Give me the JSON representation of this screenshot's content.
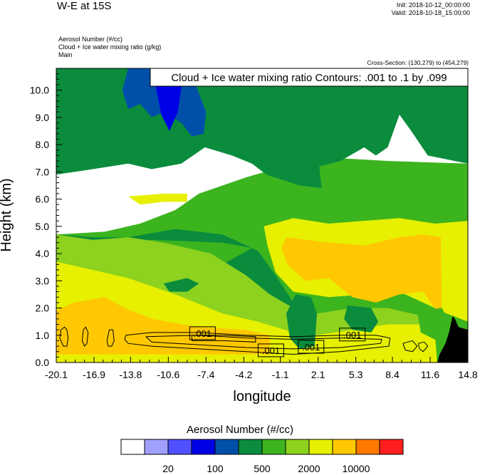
{
  "header": {
    "title": "W-E at 15S",
    "init": "Init: 2018-10-12_00:00:00",
    "valid": "Valid: 2018-10-18_15:00:00",
    "variables": [
      "Aerosol Number   (#/cc)",
      "Cloud + Ice water mixing ratio   (g/kg)",
      "Main"
    ],
    "cross_section": "Cross-Section: (130,279) to (454,279)"
  },
  "colors": {
    "levels": [
      "#ffffff",
      "#a0a0ff",
      "#5050ff",
      "#0000e6",
      "#0050aa",
      "#0a8c3c",
      "#3cb41e",
      "#8cd21e",
      "#e6f000",
      "#ffc800",
      "#ff7800",
      "#ff1e1e"
    ],
    "terrain": "#000000"
  },
  "chart_data": {
    "type": "contour",
    "title": "Cloud + Ice water mixing ratio Contours: .001 to .1 by .099",
    "xlabel": "longitude",
    "ylabel": "Height (km)",
    "x_ticks": [
      "-20.1",
      "-16.9",
      "-13.8",
      "-10.6",
      "-7.4",
      "-4.2",
      "-1.1",
      "2.1",
      "5.3",
      "8.4",
      "11.6",
      "14.8"
    ],
    "y_ticks": [
      "0.0",
      "1.0",
      "2.0",
      "3.0",
      "4.0",
      "5.0",
      "6.0",
      "7.0",
      "8.0",
      "9.0",
      "10.0"
    ],
    "xlim": [
      -20.1,
      14.8
    ],
    "ylim": [
      0,
      10.8
    ],
    "contour_labels": [
      ".001",
      ".001",
      ".001",
      ".001"
    ],
    "colorbar": {
      "title": "Aerosol Number  (#/cc)",
      "tick_labels": [
        "20",
        "100",
        "500",
        "2000",
        "10000"
      ]
    },
    "regions": [
      {
        "level": 6,
        "outline": [
          [
            -20.1,
            0
          ],
          [
            14.8,
            0
          ],
          [
            14.8,
            7.3
          ],
          [
            8,
            7.4
          ],
          [
            4,
            7.5
          ],
          [
            0,
            7.3
          ],
          [
            -4,
            6.8
          ],
          [
            -8,
            6.2
          ],
          [
            -10,
            5.6
          ],
          [
            -13,
            5.1
          ],
          [
            -16,
            4.8
          ],
          [
            -20.1,
            4.7
          ]
        ]
      },
      {
        "level": 5,
        "outline": [
          [
            -20.1,
            10.8
          ],
          [
            14.8,
            10.8
          ],
          [
            14.8,
            7.3
          ],
          [
            11.4,
            7.6
          ],
          [
            10,
            8.5
          ],
          [
            9,
            9.1
          ],
          [
            8,
            7.9
          ],
          [
            7,
            7.6
          ],
          [
            6,
            7.9
          ],
          [
            4,
            7.4
          ],
          [
            2.2,
            7.2
          ],
          [
            2.4,
            6.4
          ],
          [
            0.5,
            6.5
          ],
          [
            -2.3,
            6.9
          ],
          [
            -3.5,
            7.3
          ],
          [
            -5.2,
            7.6
          ],
          [
            -7.5,
            7.9
          ],
          [
            -9.5,
            7.3
          ],
          [
            -12,
            7.1
          ],
          [
            -14,
            7.3
          ],
          [
            -17,
            7.1
          ],
          [
            -20.1,
            6.9
          ]
        ]
      },
      {
        "level": 5,
        "outline": [
          [
            -20.1,
            4.7
          ],
          [
            -17,
            4.6
          ],
          [
            -14,
            4.6
          ],
          [
            -10,
            4.9
          ],
          [
            -6,
            4.7
          ],
          [
            -3,
            4.1
          ],
          [
            -1.5,
            3.2
          ],
          [
            0,
            2.2
          ],
          [
            2,
            1.7
          ],
          [
            5,
            1.6
          ],
          [
            8,
            1.8
          ],
          [
            11,
            1.5
          ],
          [
            12,
            1.2
          ],
          [
            12,
            0.4
          ],
          [
            3,
            0.4
          ],
          [
            -4,
            0.4
          ],
          [
            -8,
            0.5
          ],
          [
            -20.1,
            0.5
          ],
          [
            -20.1,
            0.9
          ],
          [
            -17,
            1.1
          ],
          [
            -14,
            1.4
          ],
          [
            -10,
            2.4
          ],
          [
            -6,
            3.6
          ],
          [
            -3.5,
            4.2
          ],
          [
            -6,
            4.4
          ],
          [
            -12,
            4.5
          ],
          [
            -20.1,
            4.2
          ]
        ]
      },
      {
        "level": 4,
        "outline": [
          [
            -14,
            10.8
          ],
          [
            -9,
            10.8
          ],
          [
            -8.2,
            10.1
          ],
          [
            -7.4,
            9.2
          ],
          [
            -7.6,
            8.4
          ],
          [
            -8.6,
            8.3
          ],
          [
            -9.5,
            8.8
          ],
          [
            -11,
            9.2
          ],
          [
            -12,
            9.0
          ],
          [
            -13,
            9.5
          ],
          [
            -14,
            9.3
          ],
          [
            -14.5,
            10.0
          ]
        ]
      },
      {
        "level": 3,
        "outline": [
          [
            -12,
            10.8
          ],
          [
            -9.3,
            10.8
          ],
          [
            -9.5,
            10.1
          ],
          [
            -9.8,
            9.2
          ],
          [
            -10.5,
            8.5
          ],
          [
            -11.2,
            9.1
          ],
          [
            -11.6,
            10.0
          ]
        ]
      },
      {
        "level": 4,
        "outline": [
          [
            -8,
            10.8
          ],
          [
            -6.5,
            10.8
          ],
          [
            -6.8,
            10.3
          ],
          [
            -7.3,
            10.2
          ],
          [
            -7.8,
            10.4
          ]
        ]
      },
      {
        "level": 7,
        "outline": [
          [
            -20.1,
            4.7
          ],
          [
            -17,
            4.5
          ],
          [
            -14,
            4.6
          ],
          [
            -11,
            4.4
          ],
          [
            -7,
            4.0
          ],
          [
            -4,
            3.2
          ],
          [
            -2,
            2.5
          ],
          [
            0,
            2.0
          ],
          [
            2,
            1.8
          ],
          [
            5,
            2.0
          ],
          [
            8,
            2.0
          ],
          [
            11,
            1.7
          ],
          [
            12,
            1.2
          ],
          [
            12,
            0.2
          ],
          [
            -20.1,
            0.2
          ]
        ]
      },
      {
        "level": 8,
        "outline": [
          [
            -20.1,
            3.7
          ],
          [
            -17,
            3.4
          ],
          [
            -14,
            3.1
          ],
          [
            -10,
            2.5
          ],
          [
            -6,
            1.8
          ],
          [
            -3,
            1.5
          ],
          [
            0,
            1.1
          ],
          [
            2,
            1.0
          ],
          [
            5,
            1.2
          ],
          [
            8,
            1.4
          ],
          [
            11,
            1.4
          ],
          [
            12,
            1.1
          ],
          [
            12.2,
            0
          ],
          [
            -20.1,
            0
          ]
        ]
      },
      {
        "level": 8,
        "outline": [
          [
            -2.5,
            5.0
          ],
          [
            0,
            5.3
          ],
          [
            3,
            5.1
          ],
          [
            6,
            5.2
          ],
          [
            9,
            5.3
          ],
          [
            12,
            5.1
          ],
          [
            14.8,
            5.2
          ],
          [
            14.8,
            1.5
          ],
          [
            13,
            1.8
          ],
          [
            11,
            2.2
          ],
          [
            9,
            2.6
          ],
          [
            6,
            2.5
          ],
          [
            3,
            2.4
          ],
          [
            0,
            2.6
          ],
          [
            -1.5,
            3.3
          ],
          [
            -2.2,
            4.3
          ]
        ]
      },
      {
        "level": 9,
        "outline": [
          [
            -18.6,
            2.2
          ],
          [
            -16,
            2.4
          ],
          [
            -14.3,
            2.0
          ],
          [
            -12,
            1.6
          ],
          [
            -8,
            1.3
          ],
          [
            -4,
            1.2
          ],
          [
            -2,
            1.0
          ],
          [
            -2,
            0.3
          ],
          [
            -20.1,
            0.3
          ],
          [
            -20.1,
            1.9
          ]
        ]
      },
      {
        "level": 9,
        "outline": [
          [
            -0.6,
            4.6
          ],
          [
            3,
            4.4
          ],
          [
            6,
            4.3
          ],
          [
            9,
            4.6
          ],
          [
            11,
            4.7
          ],
          [
            12.5,
            4.6
          ],
          [
            12.6,
            1.6
          ],
          [
            11,
            2.6
          ],
          [
            9,
            2.5
          ],
          [
            7,
            2.2
          ],
          [
            5,
            2.4
          ],
          [
            3,
            3.1
          ],
          [
            1,
            3.0
          ],
          [
            -0.5,
            3.6
          ],
          [
            -1,
            4.2
          ]
        ]
      },
      {
        "level": 8,
        "outline": [
          [
            -14,
            6.1
          ],
          [
            -11,
            6.2
          ],
          [
            -9,
            6.2
          ],
          [
            -9,
            5.9
          ],
          [
            -11,
            5.9
          ],
          [
            -13,
            5.8
          ]
        ]
      },
      {
        "level": 5,
        "outline": [
          [
            -11,
            2.9
          ],
          [
            -9,
            3.1
          ],
          [
            -8,
            2.9
          ],
          [
            -9,
            2.6
          ],
          [
            -10.5,
            2.6
          ]
        ]
      },
      {
        "level": 5,
        "outline": [
          [
            0.2,
            2.5
          ],
          [
            1.5,
            2.4
          ],
          [
            2,
            1.8
          ],
          [
            1.8,
            0.6
          ],
          [
            0.5,
            0.5
          ],
          [
            -0.3,
            0.9
          ],
          [
            -0.6,
            1.8
          ]
        ]
      },
      {
        "level": 5,
        "outline": [
          [
            4.6,
            2.1
          ],
          [
            6.6,
            2.0
          ],
          [
            7.2,
            1.5
          ],
          [
            6.6,
            1.1
          ],
          [
            5,
            1.2
          ],
          [
            4.3,
            1.6
          ]
        ]
      },
      {
        "level": 6,
        "outline": [
          [
            10.5,
            1.9
          ],
          [
            12.6,
            2.0
          ],
          [
            13.3,
            1.4
          ],
          [
            12.2,
            0.8
          ],
          [
            10.8,
            1.1
          ]
        ]
      }
    ],
    "terrain": {
      "outline": [
        [
          12.2,
          0
        ],
        [
          12.4,
          0.3
        ],
        [
          12.9,
          0.7
        ],
        [
          13.2,
          1.1
        ],
        [
          13.5,
          1.7
        ],
        [
          13.7,
          1.6
        ],
        [
          14,
          1.3
        ],
        [
          14.8,
          1.2
        ],
        [
          14.8,
          0
        ]
      ]
    },
    "contours": [
      [
        [
          -19.8,
          0.9
        ],
        [
          -19.7,
          1.2
        ],
        [
          -19.4,
          1.3
        ],
        [
          -19.2,
          1.2
        ],
        [
          -19.1,
          0.9
        ],
        [
          -19.2,
          0.6
        ],
        [
          -19.5,
          0.6
        ],
        [
          -19.8,
          0.9
        ]
      ],
      [
        [
          -17.9,
          0.8
        ],
        [
          -17.8,
          1.2
        ],
        [
          -17.6,
          1.3
        ],
        [
          -17.4,
          1.1
        ],
        [
          -17.5,
          0.7
        ],
        [
          -17.7,
          0.6
        ],
        [
          -17.9,
          0.8
        ]
      ],
      [
        [
          -15.8,
          0.8
        ],
        [
          -15.6,
          1.2
        ],
        [
          -15.3,
          1.2
        ],
        [
          -15.2,
          0.8
        ],
        [
          -15.4,
          0.6
        ],
        [
          -15.7,
          0.6
        ],
        [
          -15.8,
          0.8
        ]
      ],
      [
        [
          -14.2,
          1.0
        ],
        [
          -12,
          1.1
        ],
        [
          -8,
          1.1
        ],
        [
          -4,
          1.0
        ],
        [
          0,
          0.95
        ],
        [
          4,
          1.0
        ],
        [
          7,
          1.0
        ],
        [
          8.2,
          0.9
        ],
        [
          8.1,
          0.6
        ],
        [
          4,
          0.4
        ],
        [
          0,
          0.3
        ],
        [
          -4,
          0.4
        ],
        [
          -8,
          0.5
        ],
        [
          -12,
          0.6
        ],
        [
          -14,
          0.7
        ],
        [
          -14.3,
          0.85
        ],
        [
          -14.2,
          1.0
        ]
      ],
      [
        [
          -12.5,
          0.95
        ],
        [
          -8,
          1.0
        ],
        [
          -4,
          0.9
        ],
        [
          0,
          0.85
        ],
        [
          4,
          0.9
        ],
        [
          7.5,
          0.85
        ],
        [
          7.4,
          0.7
        ],
        [
          4,
          0.55
        ],
        [
          0,
          0.5
        ],
        [
          -4,
          0.55
        ],
        [
          -8,
          0.65
        ],
        [
          -12,
          0.75
        ],
        [
          -12.5,
          0.95
        ]
      ],
      [
        [
          -8.6,
          1.0
        ],
        [
          -6,
          1.0
        ],
        [
          -3.2,
          0.95
        ],
        [
          -3.2,
          0.75
        ],
        [
          -6,
          0.8
        ],
        [
          -8.6,
          0.8
        ],
        [
          -8.6,
          1.0
        ]
      ],
      [
        [
          9.3,
          0.7
        ],
        [
          10.1,
          0.8
        ],
        [
          10.5,
          0.6
        ],
        [
          10.1,
          0.4
        ],
        [
          9.5,
          0.45
        ],
        [
          9.3,
          0.7
        ]
      ],
      [
        [
          10.6,
          0.7
        ],
        [
          11.1,
          0.75
        ],
        [
          11.4,
          0.6
        ],
        [
          11.0,
          0.4
        ],
        [
          10.7,
          0.5
        ],
        [
          10.6,
          0.7
        ]
      ]
    ]
  }
}
